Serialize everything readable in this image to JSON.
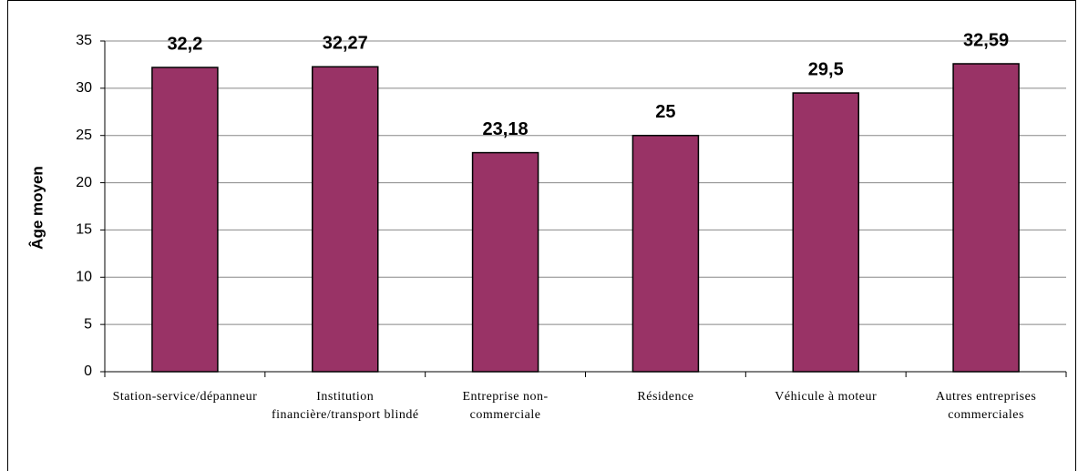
{
  "chart_data": {
    "type": "bar",
    "y_label": "Âge moyen",
    "categories": [
      "Station-service/dépanneur",
      "Institution financière/transport blindé",
      "Entreprise non-commerciale",
      "Résidence",
      "Véhicule à moteur",
      "Autres entreprises commerciales"
    ],
    "values": [
      32.2,
      32.27,
      23.18,
      25,
      29.5,
      32.59
    ],
    "value_labels": [
      "32,2",
      "32,27",
      "23,18",
      "25",
      "29,5",
      "32,59"
    ],
    "color": "#993366",
    "ylim": [
      0,
      35
    ],
    "yticks": [
      0,
      5,
      10,
      15,
      20,
      25,
      30,
      35
    ],
    "grid": true
  }
}
